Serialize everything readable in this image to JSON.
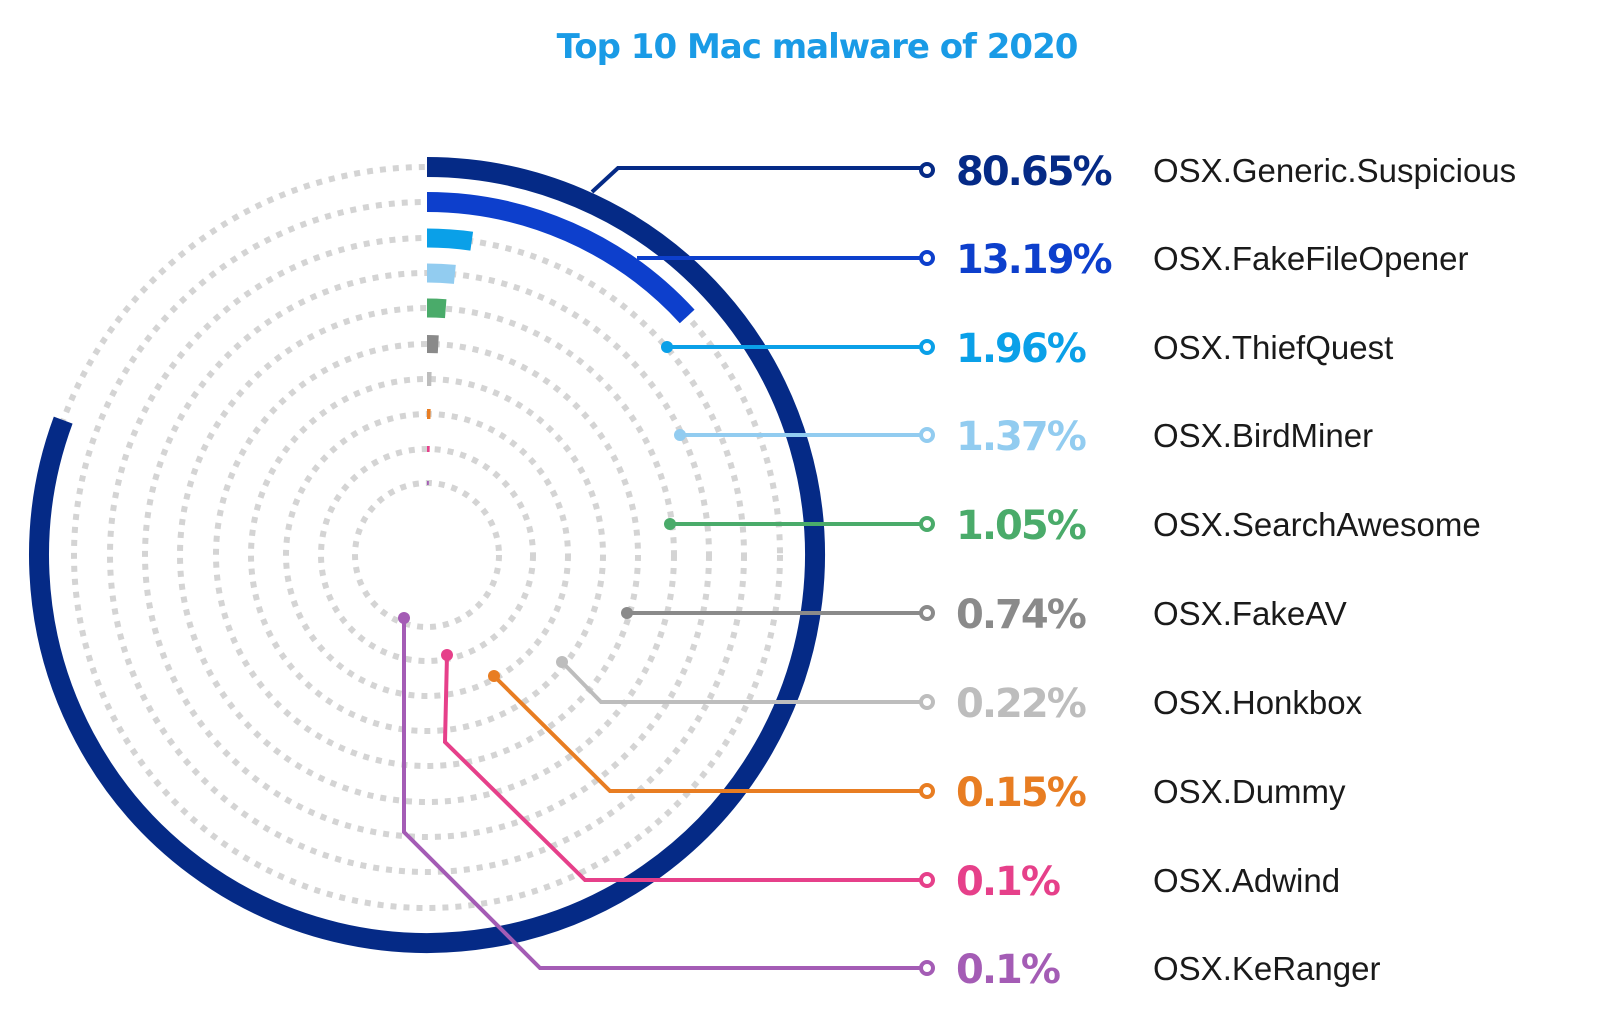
{
  "chart_data": {
    "type": "radial-bar",
    "title": "Top 10 Mac malware of 2020",
    "title_color": "#1a9be6",
    "unit": "%",
    "max_value": 100,
    "series": [
      {
        "name": "OSX.Generic.Suspicious",
        "value": 80.65,
        "label": "80.65%",
        "color": "#052a86"
      },
      {
        "name": "OSX.FakeFileOpener",
        "value": 13.19,
        "label": "13.19%",
        "color": "#0d3fcc"
      },
      {
        "name": "OSX.ThiefQuest",
        "value": 1.96,
        "label": "1.96%",
        "color": "#0aa0e8"
      },
      {
        "name": "OSX.BirdMiner",
        "value": 1.37,
        "label": "1.37%",
        "color": "#92ccf0"
      },
      {
        "name": "OSX.SearchAwesome",
        "value": 1.05,
        "label": "1.05%",
        "color": "#4aab6a"
      },
      {
        "name": "OSX.FakeAV",
        "value": 0.74,
        "label": "0.74%",
        "color": "#8a8a8a"
      },
      {
        "name": "OSX.Honkbox",
        "value": 0.22,
        "label": "0.22%",
        "color": "#bdbdbd"
      },
      {
        "name": "OSX.Dummy",
        "value": 0.15,
        "label": "0.15%",
        "color": "#e87d22"
      },
      {
        "name": "OSX.Adwind",
        "value": 0.1,
        "label": "0.1%",
        "color": "#e6408a"
      },
      {
        "name": "OSX.KeRanger",
        "value": 0.1,
        "label": "0.1%",
        "color": "#a45cb5"
      }
    ],
    "track_color": "#d4d4d4",
    "legend_position": "right"
  }
}
